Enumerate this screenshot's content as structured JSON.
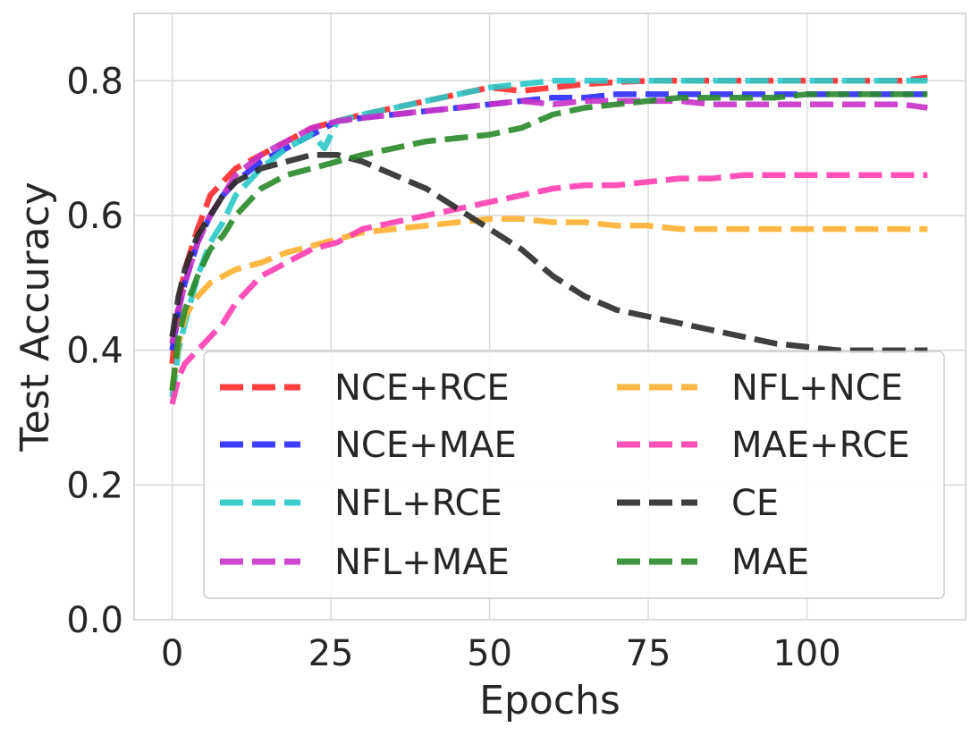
{
  "chart_data": {
    "type": "line",
    "xlabel": "Epochs",
    "ylabel": "Test Accuracy",
    "xlim": [
      -6,
      125
    ],
    "ylim": [
      0,
      0.9
    ],
    "xticks": [
      0,
      25,
      50,
      75,
      100
    ],
    "xtick_labels": [
      "0",
      "25",
      "50",
      "75",
      "100"
    ],
    "yticks": [
      0.0,
      0.2,
      0.4,
      0.6,
      0.8
    ],
    "ytick_labels": [
      "0.0",
      "0.2",
      "0.4",
      "0.6",
      "0.8"
    ],
    "grid": true,
    "legend": {
      "placement": "lower-right",
      "columns": 2
    },
    "series": [
      {
        "name": "NCE+RCE",
        "color": "#ff2a2a",
        "x": [
          0,
          1,
          2,
          4,
          6,
          8,
          10,
          14,
          18,
          22,
          26,
          30,
          35,
          40,
          45,
          50,
          55,
          60,
          65,
          70,
          75,
          80,
          85,
          90,
          95,
          100,
          105,
          110,
          115,
          119
        ],
        "y": [
          0.38,
          0.47,
          0.52,
          0.58,
          0.63,
          0.65,
          0.67,
          0.69,
          0.71,
          0.73,
          0.74,
          0.75,
          0.76,
          0.77,
          0.78,
          0.79,
          0.785,
          0.79,
          0.795,
          0.798,
          0.8,
          0.8,
          0.8,
          0.8,
          0.8,
          0.8,
          0.8,
          0.8,
          0.8,
          0.805
        ]
      },
      {
        "name": "NCE+MAE",
        "color": "#2a2aff",
        "x": [
          0,
          1,
          2,
          4,
          6,
          8,
          10,
          14,
          18,
          22,
          26,
          30,
          35,
          40,
          45,
          50,
          55,
          60,
          65,
          70,
          75,
          80,
          85,
          90,
          95,
          100,
          105,
          110,
          115,
          119
        ],
        "y": [
          0.4,
          0.46,
          0.5,
          0.56,
          0.6,
          0.63,
          0.65,
          0.68,
          0.7,
          0.72,
          0.74,
          0.745,
          0.75,
          0.755,
          0.76,
          0.765,
          0.77,
          0.775,
          0.775,
          0.78,
          0.78,
          0.78,
          0.78,
          0.78,
          0.78,
          0.78,
          0.78,
          0.78,
          0.78,
          0.78
        ]
      },
      {
        "name": "NFL+RCE",
        "color": "#2ac8c8",
        "x": [
          0,
          1,
          2,
          4,
          6,
          8,
          10,
          14,
          18,
          22,
          24,
          26,
          30,
          35,
          40,
          45,
          50,
          55,
          60,
          65,
          70,
          75,
          80,
          85,
          90,
          95,
          100,
          105,
          110,
          115,
          119
        ],
        "y": [
          0.33,
          0.4,
          0.44,
          0.51,
          0.56,
          0.59,
          0.63,
          0.67,
          0.7,
          0.72,
          0.7,
          0.74,
          0.75,
          0.76,
          0.77,
          0.78,
          0.79,
          0.795,
          0.8,
          0.8,
          0.8,
          0.8,
          0.8,
          0.8,
          0.8,
          0.8,
          0.8,
          0.8,
          0.8,
          0.8,
          0.8
        ]
      },
      {
        "name": "NFL+MAE",
        "color": "#c832c8",
        "x": [
          0,
          1,
          2,
          4,
          6,
          8,
          10,
          14,
          18,
          22,
          26,
          30,
          35,
          40,
          45,
          50,
          55,
          60,
          65,
          70,
          75,
          80,
          85,
          90,
          95,
          100,
          105,
          110,
          115,
          119
        ],
        "y": [
          0.41,
          0.46,
          0.5,
          0.56,
          0.6,
          0.63,
          0.66,
          0.69,
          0.71,
          0.73,
          0.74,
          0.745,
          0.75,
          0.755,
          0.76,
          0.765,
          0.77,
          0.765,
          0.77,
          0.77,
          0.77,
          0.77,
          0.765,
          0.765,
          0.765,
          0.765,
          0.765,
          0.765,
          0.765,
          0.76
        ]
      },
      {
        "name": "NFL+NCE",
        "color": "#ffb030",
        "x": [
          0,
          1,
          2,
          4,
          6,
          8,
          10,
          14,
          18,
          22,
          26,
          30,
          35,
          40,
          45,
          50,
          55,
          60,
          65,
          70,
          75,
          80,
          85,
          90,
          95,
          100,
          105,
          110,
          115,
          119
        ],
        "y": [
          0.34,
          0.41,
          0.45,
          0.48,
          0.5,
          0.51,
          0.52,
          0.53,
          0.545,
          0.555,
          0.565,
          0.575,
          0.58,
          0.585,
          0.59,
          0.595,
          0.595,
          0.59,
          0.59,
          0.585,
          0.585,
          0.58,
          0.58,
          0.58,
          0.58,
          0.58,
          0.58,
          0.58,
          0.58,
          0.58
        ]
      },
      {
        "name": "MAE+RCE",
        "color": "#ff3eb0",
        "x": [
          0,
          1,
          2,
          4,
          6,
          8,
          10,
          14,
          18,
          22,
          26,
          30,
          35,
          40,
          45,
          50,
          55,
          60,
          65,
          70,
          75,
          80,
          85,
          90,
          95,
          100,
          105,
          110,
          115,
          119
        ],
        "y": [
          0.32,
          0.36,
          0.38,
          0.4,
          0.42,
          0.44,
          0.47,
          0.51,
          0.53,
          0.55,
          0.56,
          0.58,
          0.59,
          0.6,
          0.61,
          0.62,
          0.63,
          0.64,
          0.645,
          0.645,
          0.65,
          0.655,
          0.655,
          0.66,
          0.66,
          0.66,
          0.66,
          0.66,
          0.66,
          0.66
        ]
      },
      {
        "name": "CE",
        "color": "#2a2a2a",
        "x": [
          0,
          1,
          2,
          4,
          6,
          8,
          10,
          14,
          18,
          22,
          26,
          30,
          35,
          40,
          45,
          50,
          55,
          60,
          65,
          70,
          75,
          80,
          85,
          90,
          95,
          100,
          105,
          110,
          115,
          119
        ],
        "y": [
          0.42,
          0.48,
          0.52,
          0.57,
          0.6,
          0.63,
          0.65,
          0.67,
          0.68,
          0.69,
          0.69,
          0.68,
          0.66,
          0.64,
          0.61,
          0.58,
          0.55,
          0.51,
          0.48,
          0.46,
          0.45,
          0.44,
          0.43,
          0.42,
          0.41,
          0.405,
          0.4,
          0.4,
          0.4,
          0.4
        ]
      },
      {
        "name": "MAE",
        "color": "#2a8a2a",
        "x": [
          0,
          1,
          2,
          4,
          6,
          8,
          10,
          14,
          18,
          22,
          26,
          30,
          35,
          40,
          45,
          50,
          55,
          60,
          65,
          70,
          75,
          80,
          85,
          90,
          95,
          100,
          105,
          110,
          115,
          119
        ],
        "y": [
          0.34,
          0.42,
          0.46,
          0.51,
          0.55,
          0.57,
          0.6,
          0.64,
          0.66,
          0.67,
          0.68,
          0.69,
          0.7,
          0.71,
          0.715,
          0.72,
          0.73,
          0.75,
          0.76,
          0.765,
          0.77,
          0.775,
          0.775,
          0.775,
          0.775,
          0.78,
          0.78,
          0.78,
          0.78,
          0.78
        ]
      }
    ]
  }
}
